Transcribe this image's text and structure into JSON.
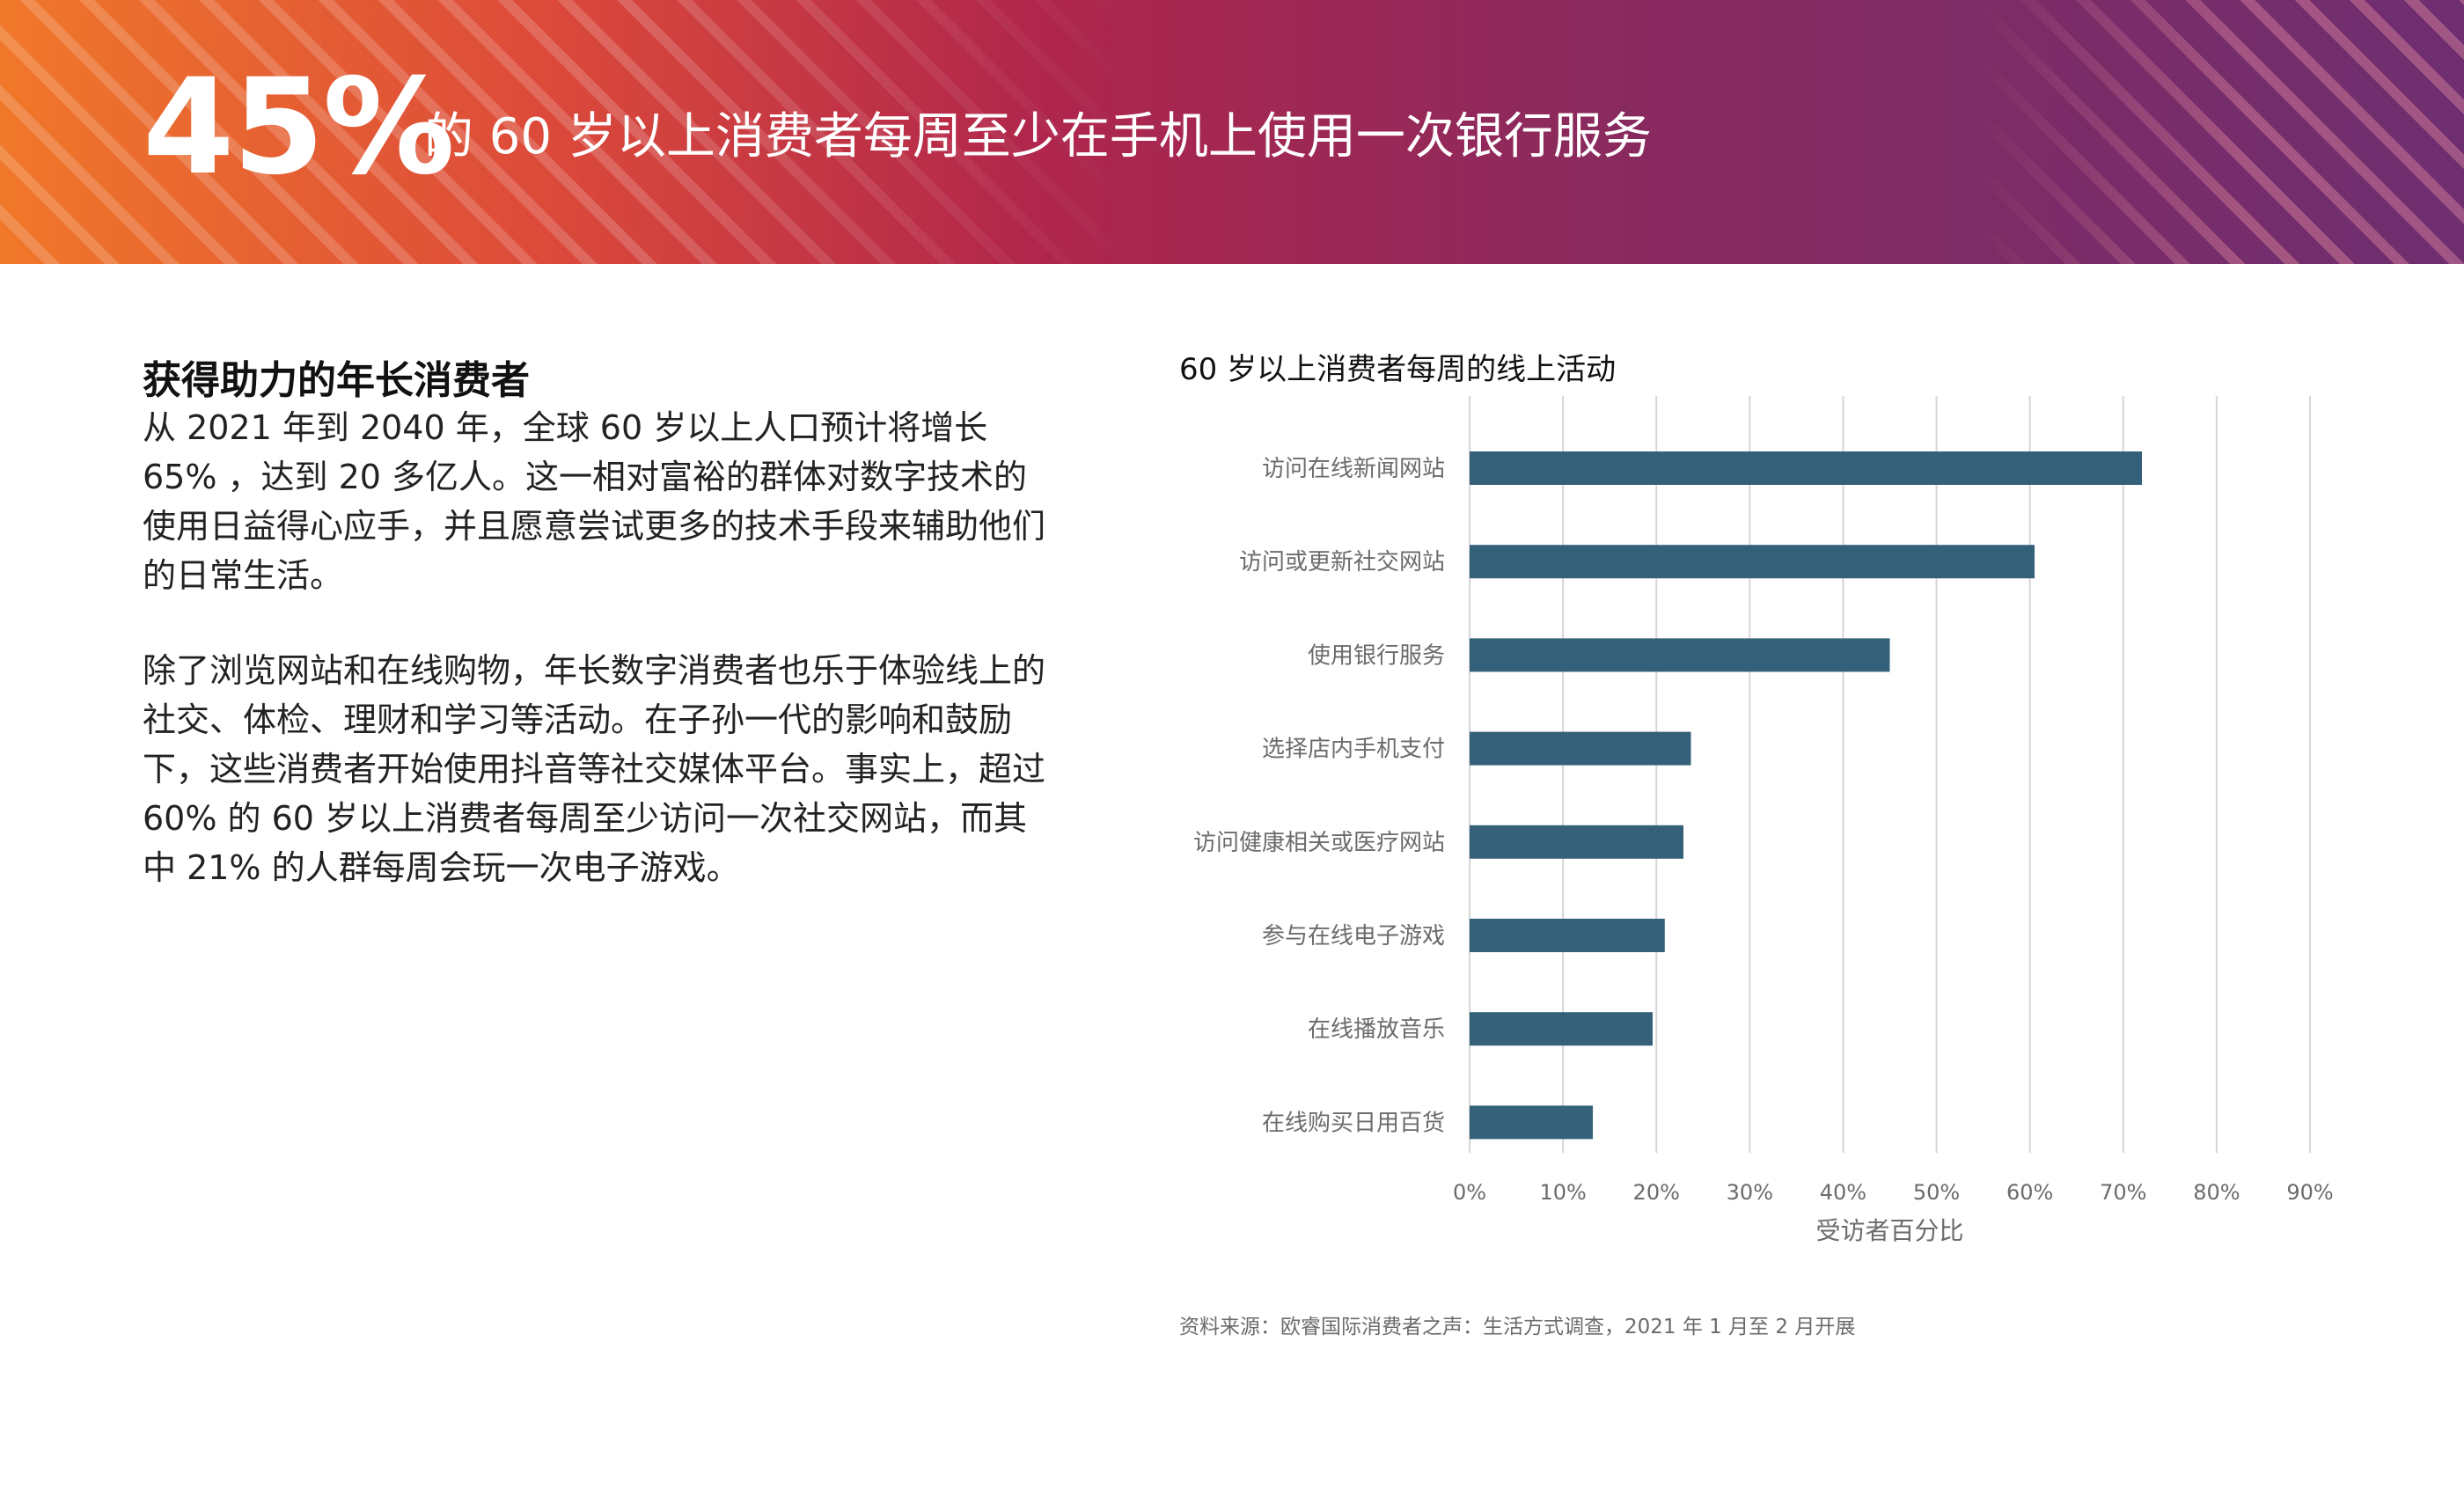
{
  "banner": {
    "stat": "45%",
    "headline": "的 60 岁以上消费者每周至少在手机上使用一次银行服务"
  },
  "content": {
    "heading": "获得助力的年长消费者",
    "paragraph1": "从 2021 年到 2040 年，全球 60 岁以上人口预计将增长 65% ，达到 20 多亿人。这一相对富裕的群体对数字技术的使用日益得心应手，并且愿意尝试更多的技术手段来辅助他们的日常生活。",
    "paragraph2": "除了浏览网站和在线购物，年长数字消费者也乐于体验线上的社交、体检、理财和学习等活动。在子孙一代的影响和鼓励下，这些消费者开始使用抖音等社交媒体平台。事实上，超过 60% 的 60 岁以上消费者每周至少访问一次社交网站，而其中 21% 的人群每周会玩一次电子游戏。"
  },
  "chart_data": {
    "type": "bar",
    "orientation": "horizontal",
    "title": "60 岁以上消费者每周的线上活动",
    "xlabel": "受访者百分比",
    "ylabel": "",
    "categories": [
      "访问在线新闻网站",
      "访问或更新社交网站",
      "使用银行服务",
      "选择店内手机支付",
      "访问健康相关或医疗网站",
      "参与在线电子游戏",
      "在线播放音乐",
      "在线购买日用百货"
    ],
    "values": [
      72,
      60.5,
      45,
      23.7,
      22.9,
      20.9,
      19.6,
      13.2
    ],
    "unit": "%",
    "xlim": [
      0,
      90
    ],
    "ticks": [
      "0%",
      "10%",
      "20%",
      "30%",
      "40%",
      "50%",
      "60%",
      "70%",
      "80%",
      "90%"
    ],
    "grid": true,
    "legend": "none",
    "bar_color": "#34607a"
  },
  "source": "资料来源：欧睿国际消费者之声：生活方式调查，2021 年 1 月至 2 月开展"
}
